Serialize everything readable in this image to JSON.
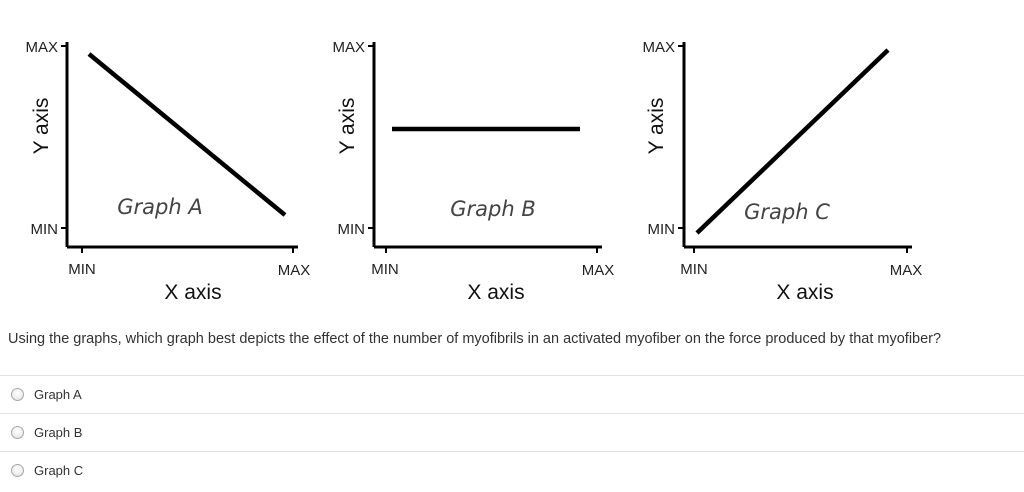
{
  "graphs": [
    {
      "title": "Graph A",
      "y_label": "Y axis",
      "x_label": "X axis",
      "y_max": "MAX",
      "y_min": "MIN",
      "x_min": "MIN",
      "x_max": "MAX",
      "trend": "decreasing"
    },
    {
      "title": "Graph B",
      "y_label": "Y axis",
      "x_label": "X axis",
      "y_max": "MAX",
      "y_min": "MIN",
      "x_min": "MIN",
      "x_max": "MAX",
      "trend": "flat"
    },
    {
      "title": "Graph C",
      "y_label": "Y axis",
      "x_label": "X axis",
      "y_max": "MAX",
      "y_min": "MIN",
      "x_min": "MIN",
      "x_max": "MAX",
      "trend": "increasing"
    }
  ],
  "question": "Using the graphs, which graph best depicts the effect of the number of myofibrils in an activated myofiber on the force produced by that myofiber?",
  "options": [
    {
      "label": "Graph A",
      "selected": false
    },
    {
      "label": "Graph B",
      "selected": false
    },
    {
      "label": "Graph C",
      "selected": false
    }
  ]
}
